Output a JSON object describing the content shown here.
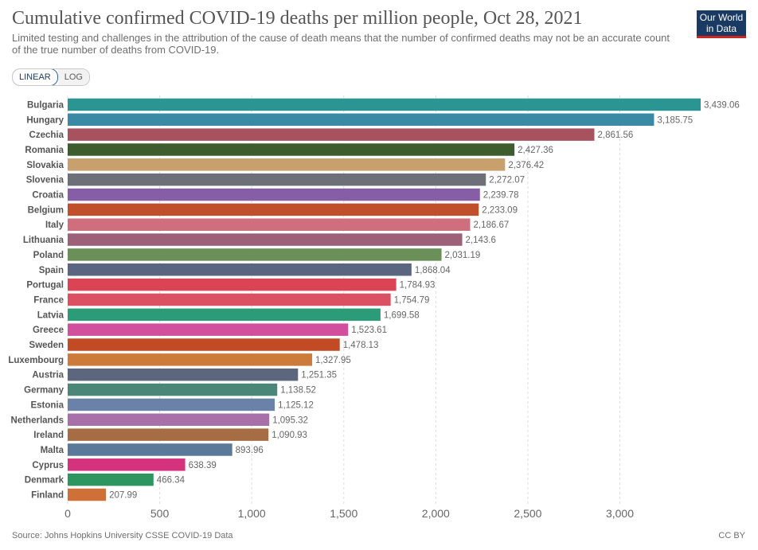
{
  "header": {
    "title": "Cumulative confirmed COVID-19 deaths per million people, Oct 28, 2021",
    "subtitle": "Limited testing and challenges in the attribution of the cause of death means that the number of confirmed deaths may not be an accurate count of the true number of deaths from COVID-19.",
    "logo_line1": "Our World",
    "logo_line2": "in Data"
  },
  "controls": {
    "linear_label": "LINEAR",
    "log_label": "LOG"
  },
  "footer": {
    "source": "Source: Johns Hopkins University CSSE COVID-19 Data",
    "license": "CC BY"
  },
  "chart_data": {
    "type": "bar",
    "orientation": "horizontal",
    "xlim": [
      0,
      3439.06
    ],
    "xticks": [
      0,
      500,
      1000,
      1500,
      2000,
      2500,
      3000
    ],
    "xtick_labels": [
      "0",
      "500",
      "1,000",
      "1,500",
      "2,000",
      "2,500",
      "3,000"
    ],
    "grid": true,
    "bars": [
      {
        "category": "Bulgaria",
        "value": 3439.06,
        "label": "3,439.06",
        "color": "#2a9592"
      },
      {
        "category": "Hungary",
        "value": 3185.75,
        "label": "3,185.75",
        "color": "#3a89a5"
      },
      {
        "category": "Czechia",
        "value": 2861.56,
        "label": "2,861.56",
        "color": "#a7525e"
      },
      {
        "category": "Romania",
        "value": 2427.36,
        "label": "2,427.36",
        "color": "#3d5d2e"
      },
      {
        "category": "Slovakia",
        "value": 2376.42,
        "label": "2,376.42",
        "color": "#c8a06e"
      },
      {
        "category": "Slovenia",
        "value": 2272.07,
        "label": "2,272.07",
        "color": "#6d6f79"
      },
      {
        "category": "Croatia",
        "value": 2239.78,
        "label": "2,239.78",
        "color": "#865ea5"
      },
      {
        "category": "Belgium",
        "value": 2233.09,
        "label": "2,233.09",
        "color": "#c04f2c"
      },
      {
        "category": "Italy",
        "value": 2186.67,
        "label": "2,186.67",
        "color": "#cf6e7c"
      },
      {
        "category": "Lithuania",
        "value": 2143.6,
        "label": "2,143.6",
        "color": "#9c6079"
      },
      {
        "category": "Poland",
        "value": 2031.19,
        "label": "2,031.19",
        "color": "#6b8f58"
      },
      {
        "category": "Spain",
        "value": 1868.04,
        "label": "1,868.04",
        "color": "#5a6680"
      },
      {
        "category": "Portugal",
        "value": 1784.93,
        "label": "1,784.93",
        "color": "#db4455"
      },
      {
        "category": "France",
        "value": 1754.79,
        "label": "1,754.79",
        "color": "#dc5064"
      },
      {
        "category": "Latvia",
        "value": 1699.58,
        "label": "1,699.58",
        "color": "#2c9c78"
      },
      {
        "category": "Greece",
        "value": 1523.61,
        "label": "1,523.61",
        "color": "#d24f9e"
      },
      {
        "category": "Sweden",
        "value": 1478.13,
        "label": "1,478.13",
        "color": "#c24b26"
      },
      {
        "category": "Luxembourg",
        "value": 1327.95,
        "label": "1,327.95",
        "color": "#cc7b3b"
      },
      {
        "category": "Austria",
        "value": 1251.35,
        "label": "1,251.35",
        "color": "#5c667c"
      },
      {
        "category": "Germany",
        "value": 1138.52,
        "label": "1,138.52",
        "color": "#4b8779"
      },
      {
        "category": "Estonia",
        "value": 1125.12,
        "label": "1,125.12",
        "color": "#6b82a8"
      },
      {
        "category": "Netherlands",
        "value": 1095.32,
        "label": "1,095.32",
        "color": "#a870a8"
      },
      {
        "category": "Ireland",
        "value": 1090.93,
        "label": "1,090.93",
        "color": "#a66d45"
      },
      {
        "category": "Malta",
        "value": 893.96,
        "label": "893.96",
        "color": "#5b7a9a"
      },
      {
        "category": "Cyprus",
        "value": 638.39,
        "label": "638.39",
        "color": "#d4327c"
      },
      {
        "category": "Denmark",
        "value": 466.34,
        "label": "466.34",
        "color": "#2c9560"
      },
      {
        "category": "Finland",
        "value": 207.99,
        "label": "207.99",
        "color": "#cf7038"
      }
    ]
  }
}
